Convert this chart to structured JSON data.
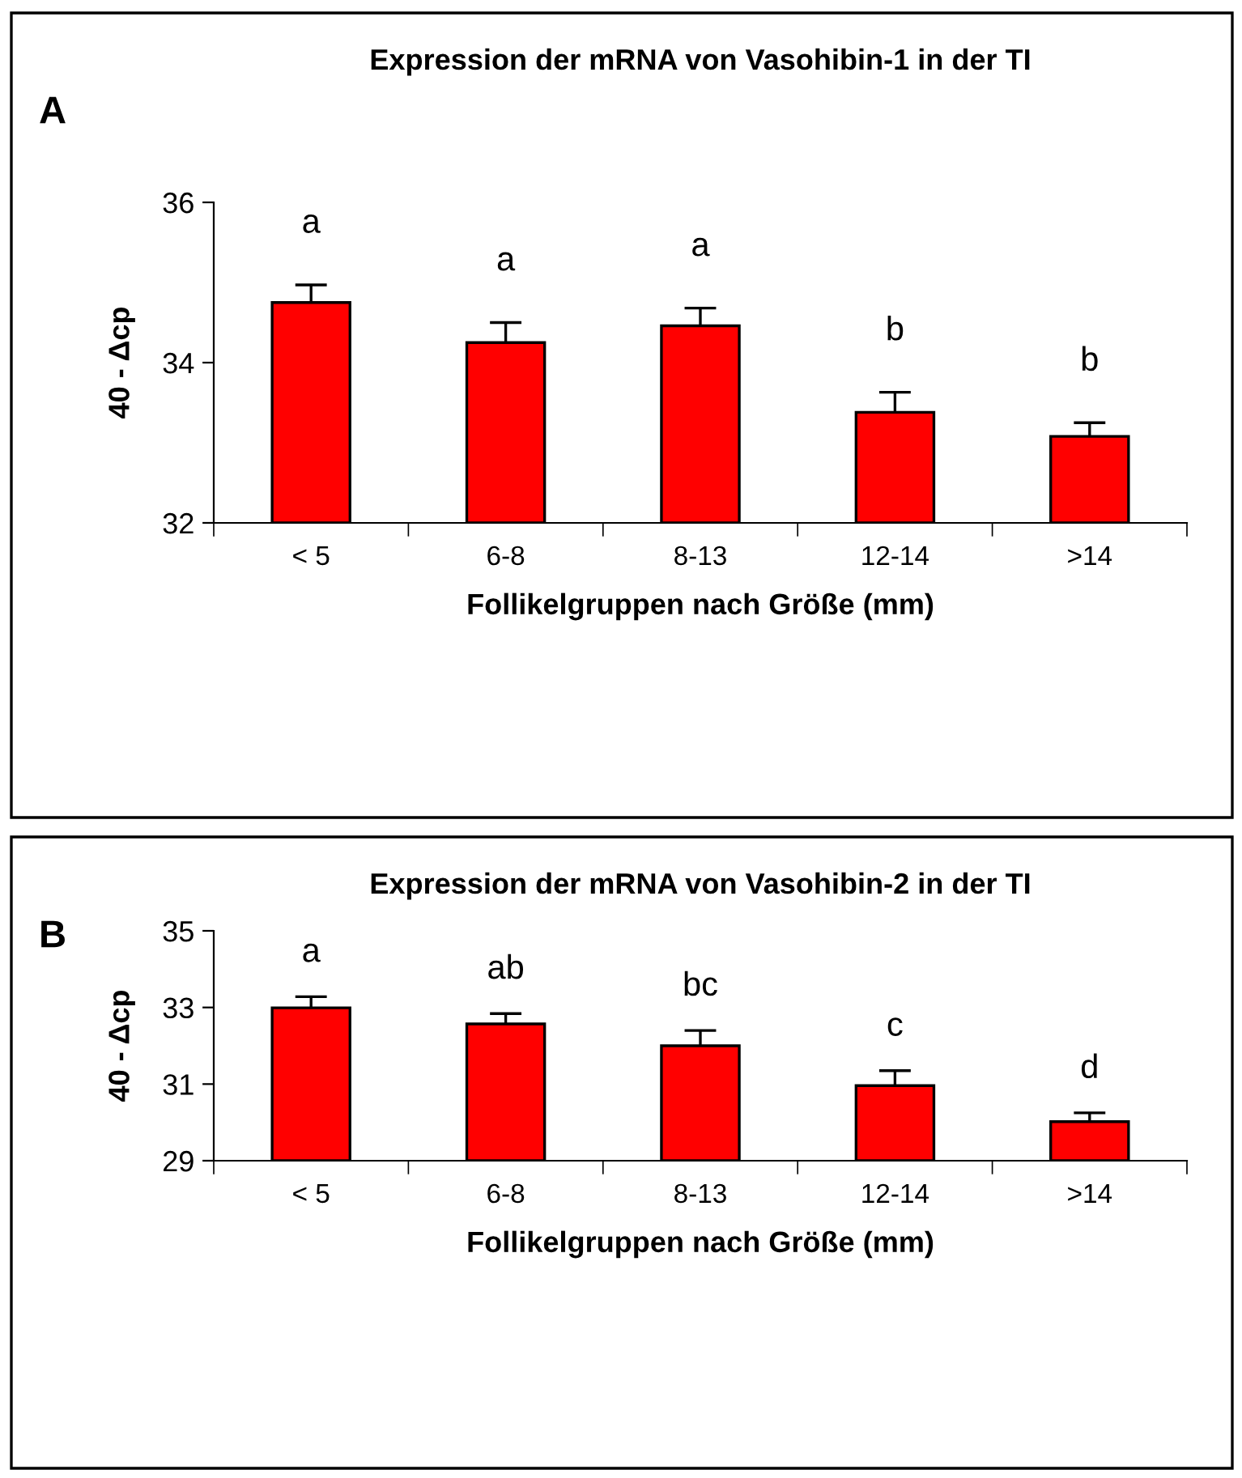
{
  "chart_data": [
    {
      "type": "bar",
      "title": "Expression der mRNA von Vasohibin-1 in der TI",
      "xlabel": "Follikelgruppen nach Größe (mm)",
      "ylabel": "40 - Δcp",
      "categories": [
        "< 5",
        "6-8",
        "8-13",
        "12-14",
        ">14"
      ],
      "values": [
        34.75,
        34.25,
        34.46,
        33.38,
        33.08
      ],
      "errors": [
        0.22,
        0.25,
        0.22,
        0.25,
        0.17
      ],
      "color": "#ff0000",
      "ylim": [
        32,
        36
      ],
      "yticks": [
        32,
        34,
        36
      ],
      "grid": false,
      "legend": false,
      "annotations": [
        "A",
        "a",
        "a",
        "a",
        "b",
        "b"
      ]
    },
    {
      "type": "bar",
      "title": "Expression der mRNA von Vasohibin-2 in der TI",
      "xlabel": "Follikelgruppen nach Größe (mm)",
      "ylabel": "40 - Δcp",
      "categories": [
        "< 5",
        "6-8",
        "8-13",
        "12-14",
        ">14"
      ],
      "values": [
        32.99,
        32.57,
        32.0,
        30.96,
        30.02
      ],
      "errors": [
        0.29,
        0.27,
        0.4,
        0.39,
        0.23
      ],
      "color": "#ff0000",
      "ylim": [
        29,
        35
      ],
      "yticks": [
        29,
        31,
        33,
        35
      ],
      "grid": false,
      "legend": false,
      "annotations": [
        "B",
        "a",
        "ab",
        "bc",
        "c",
        "d"
      ]
    }
  ]
}
